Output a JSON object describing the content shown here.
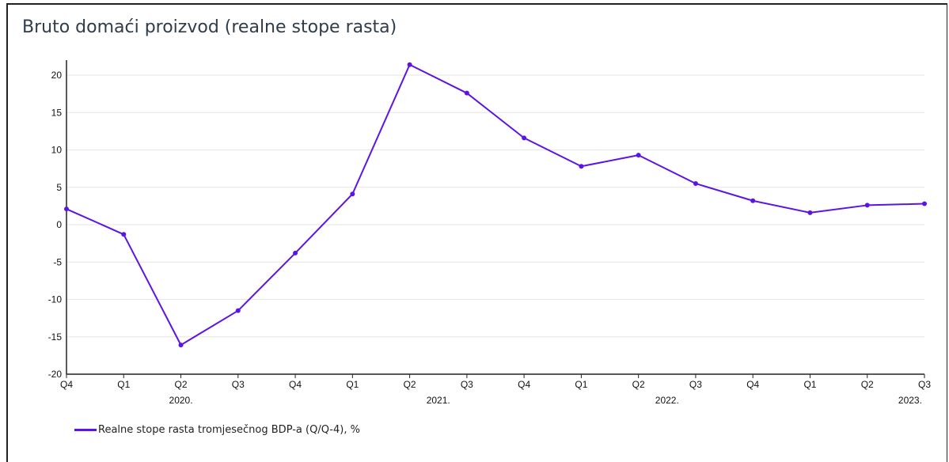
{
  "chart_data": {
    "type": "line",
    "title": "Bruto domaći proizvod (realne stope rasta)",
    "xlabel": "",
    "ylabel": "",
    "ylim": [
      -20,
      22
    ],
    "yticks": [
      20,
      15,
      10,
      5,
      0,
      -5,
      -10,
      -15,
      -20
    ],
    "y_tick_labels": [
      "20",
      "15",
      "10",
      "5",
      "0",
      "-5",
      "-10",
      "-15",
      "-20"
    ],
    "grid": true,
    "legend_position": "bottom-left",
    "categories": [
      "Q4",
      "Q1",
      "Q2",
      "Q3",
      "Q4",
      "Q1",
      "Q2",
      "Q3",
      "Q4",
      "Q1",
      "Q2",
      "Q3",
      "Q4",
      "Q1",
      "Q2",
      "Q3"
    ],
    "year_labels": [
      "2020.",
      "2021.",
      "2022.",
      "2023."
    ],
    "series": [
      {
        "name": "Realne stope rasta tromjesečnog BDP-a (Q/Q-4), %",
        "color": "#5c14e6",
        "values": [
          2.1,
          -1.3,
          -16.1,
          -11.5,
          -3.8,
          4.1,
          21.4,
          17.6,
          11.6,
          7.8,
          9.3,
          5.5,
          3.2,
          1.6,
          2.6,
          2.8
        ]
      }
    ]
  }
}
